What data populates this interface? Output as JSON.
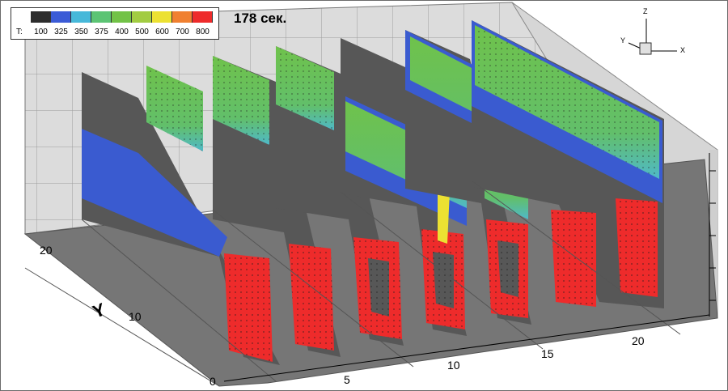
{
  "title": "178 сек.",
  "legend": {
    "variable": "T:",
    "levels": [
      "100",
      "325",
      "350",
      "375",
      "400",
      "500",
      "600",
      "700",
      "800"
    ],
    "colors": [
      "#2d2d2d",
      "#3b5bd6",
      "#47b8d9",
      "#5cc474",
      "#72c247",
      "#a2cc42",
      "#ece132",
      "#f08030",
      "#ee2b2b"
    ]
  },
  "axis": {
    "x_name": "",
    "x_ticks": [
      "5",
      "10",
      "15",
      "20"
    ],
    "y_name": "Y",
    "y_ticks": [
      "0",
      "10",
      "20"
    ]
  },
  "triad": {
    "x": "X",
    "y": "Y",
    "z": "Z"
  },
  "colors": {
    "wall_gray": "#595959",
    "floor_gray": "#7a7a7a",
    "wall_light": "#dcdcdc",
    "hot": "#ee2b2b",
    "cool": "#3b5bd6",
    "warm": "#72c247"
  }
}
